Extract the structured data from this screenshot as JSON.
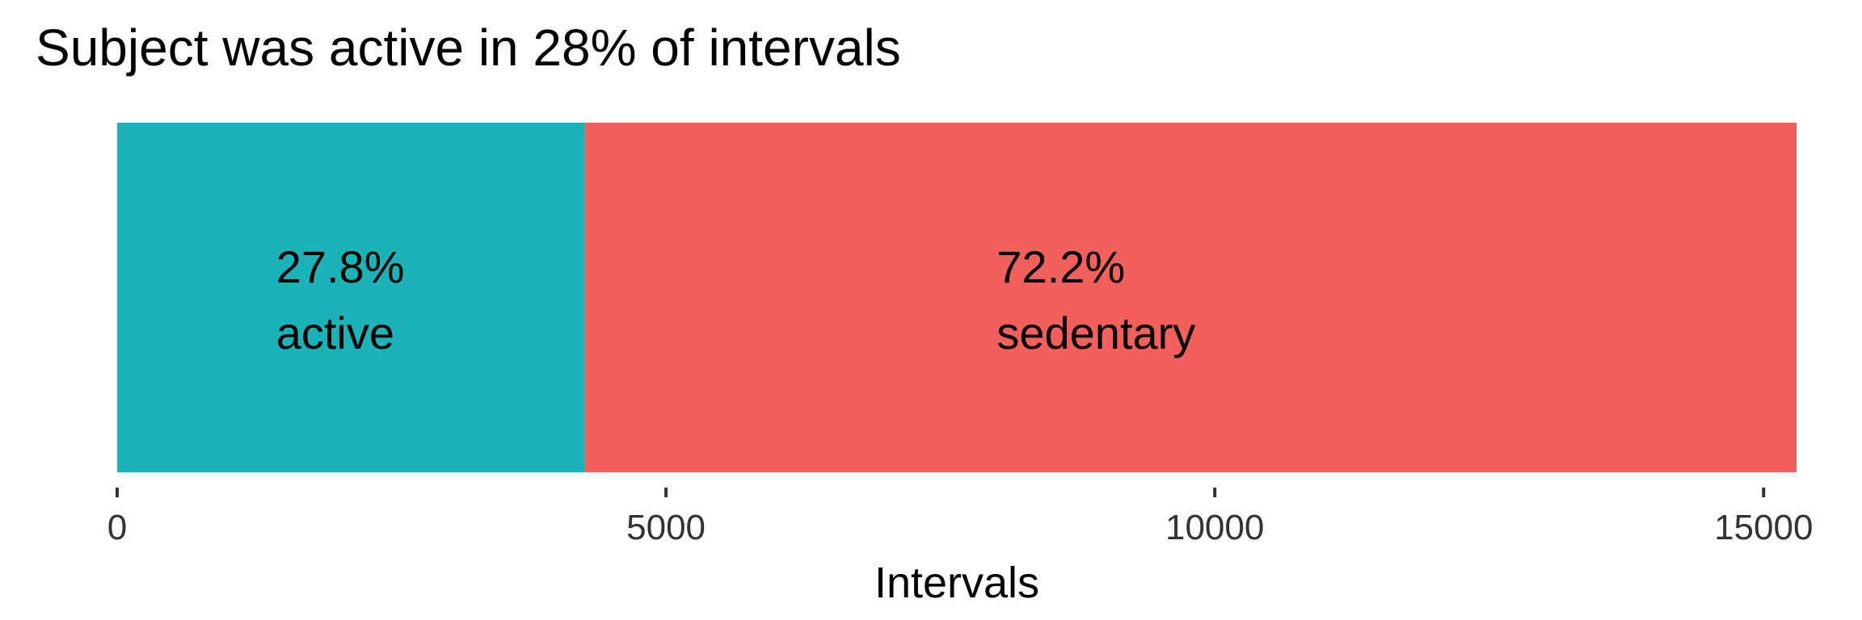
{
  "chart_data": {
    "type": "bar",
    "orientation": "horizontal-stacked",
    "title": "Subject was active in 28% of intervals",
    "xlabel": "Intervals",
    "ylabel": "",
    "xlim": [
      0,
      15300
    ],
    "xticks": [
      0,
      5000,
      10000,
      15000
    ],
    "grid": false,
    "legend": "none",
    "segments": [
      {
        "category": "active",
        "value": 4260,
        "percent_label": "27.8%",
        "color": "#19B3B8"
      },
      {
        "category": "sedentary",
        "value": 11040,
        "percent_label": "72.2%",
        "color": "#F2605C"
      }
    ]
  }
}
